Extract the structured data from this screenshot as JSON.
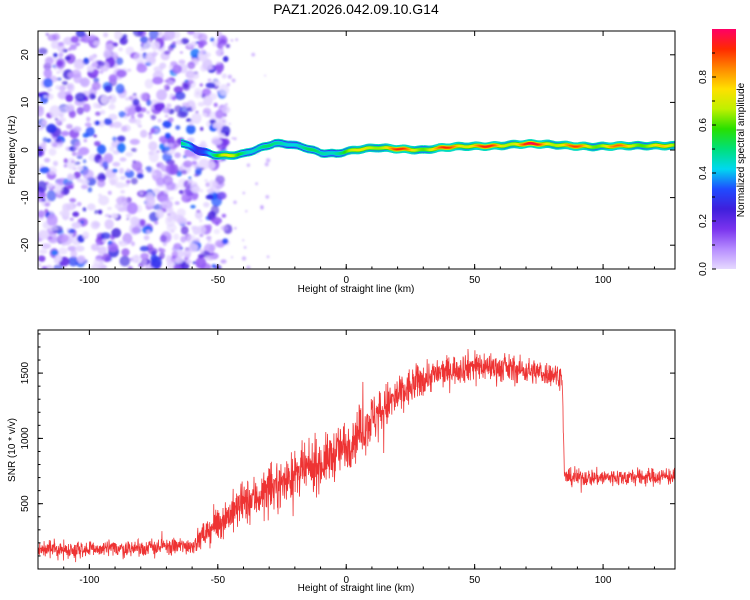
{
  "figure_title": "PAZ1.2026.042.09.10.G14",
  "colors": {
    "snr_line": "#ee3333",
    "cloud_purple": "#7a33ee",
    "colormap": [
      "#e6d9ff",
      "#b68cff",
      "#7a33ee",
      "#3f1fdc",
      "#1f4bff",
      "#00d8f0",
      "#00e07a",
      "#28e000",
      "#bff000",
      "#ffe000",
      "#ff8a00",
      "#ff2a00",
      "#ff0066"
    ]
  },
  "chart_data": [
    {
      "type": "heatmap",
      "title": "PAZ1.2026.042.09.10.G14",
      "xlabel": "Height of straight line (km)",
      "ylabel": "Frequency (Hz)",
      "xlim": [
        -120,
        128
      ],
      "ylim": [
        -25,
        25
      ],
      "x_ticks": [
        -100,
        -50,
        0,
        50,
        100
      ],
      "y_ticks": [
        -20,
        -10,
        0,
        10,
        20
      ],
      "x_tick_labels": [
        "-100",
        "-50",
        "0",
        "50",
        "100"
      ],
      "y_tick_labels": [
        "-20",
        "-10",
        "0",
        "10",
        "20"
      ],
      "noise_region_x": [
        -120,
        -50
      ],
      "ridge": {
        "x": [
          -64,
          -58,
          -52,
          -46,
          -40,
          -34,
          -28,
          -22,
          -16,
          -10,
          -4,
          0,
          6,
          12,
          18,
          24,
          30,
          36,
          42,
          48,
          54,
          60,
          66,
          72,
          78,
          84,
          90,
          96,
          102,
          108,
          114,
          120,
          128
        ],
        "y": [
          1.5,
          0,
          -1.0,
          -1.2,
          -0.8,
          0.3,
          1.4,
          1.2,
          0.5,
          -0.6,
          -0.8,
          -0.3,
          0.2,
          0.5,
          0.3,
          0.1,
          0.0,
          0.4,
          0.7,
          0.8,
          0.8,
          0.9,
          1.2,
          1.3,
          1.2,
          1.0,
          0.8,
          0.7,
          0.8,
          0.9,
          0.9,
          0.9,
          0.9
        ],
        "amplitude": [
          0.45,
          0.3,
          0.55,
          0.7,
          0.6,
          0.5,
          0.45,
          0.55,
          0.5,
          0.45,
          0.6,
          0.65,
          0.7,
          0.85,
          0.9,
          0.85,
          0.8,
          0.85,
          0.9,
          0.95,
          0.9,
          0.85,
          0.9,
          0.95,
          0.9,
          0.85,
          0.85,
          0.8,
          0.85,
          0.8,
          0.8,
          0.75,
          0.7
        ]
      },
      "colorbar": {
        "label": "Normalized spectral amplitude",
        "range": [
          0,
          1
        ],
        "ticks": [
          0.0,
          0.2,
          0.4,
          0.6,
          0.8
        ],
        "tick_labels": [
          "0.0",
          "0.2",
          "0.4",
          "0.6",
          "0.8"
        ]
      }
    },
    {
      "type": "line",
      "xlabel": "Height of straight line (km)",
      "ylabel": "SNR (10 * v/v)",
      "xlim": [
        -120,
        128
      ],
      "ylim": [
        0,
        1830
      ],
      "x_ticks": [
        -100,
        -50,
        0,
        50,
        100
      ],
      "y_ticks": [
        500,
        1000,
        1500
      ],
      "x_tick_labels": [
        "-100",
        "-50",
        "0",
        "50",
        "100"
      ],
      "y_tick_labels": [
        "500",
        "1000",
        "1500"
      ],
      "series": [
        {
          "name": "SNR",
          "x": [
            -120,
            -100,
            -80,
            -60,
            -56,
            -50,
            -40,
            -30,
            -20,
            -10,
            0,
            10,
            20,
            30,
            40,
            50,
            60,
            70,
            84,
            85,
            100,
            128
          ],
          "y": [
            150,
            150,
            160,
            180,
            250,
            350,
            500,
            600,
            720,
            800,
            950,
            1150,
            1320,
            1460,
            1520,
            1560,
            1540,
            1520,
            1480,
            700,
            700,
            710
          ],
          "noise_amplitude": [
            60,
            60,
            60,
            60,
            90,
            120,
            150,
            160,
            160,
            170,
            180,
            180,
            150,
            120,
            100,
            110,
            100,
            90,
            80,
            60,
            60,
            60
          ]
        }
      ]
    }
  ]
}
